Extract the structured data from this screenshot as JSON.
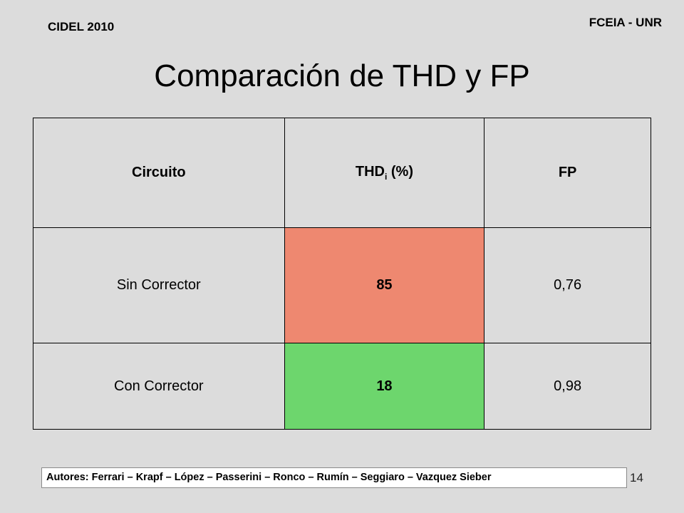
{
  "header": {
    "left_label": "CIDEL 2010",
    "right_label": "FCEIA - UNR"
  },
  "title": "Comparación de THD y FP",
  "table": {
    "headers": {
      "col1": "Circuito",
      "col2_main": "THD",
      "col2_sub": "i",
      "col2_tail": " (%)",
      "col3": "FP"
    },
    "rows": [
      {
        "circuito": "Sin Corrector",
        "thd": "85",
        "fp": "0,76",
        "thd_color": "#ee8870"
      },
      {
        "circuito": "Con Corrector",
        "thd": "18",
        "fp": "0,98",
        "thd_color": "#6dd66d"
      }
    ]
  },
  "footer": {
    "authors": "Autores: Ferrari – Krapf – López – Passerini – Ronco – Rumín – Seggiaro – Vazquez Sieber",
    "page_number": "14"
  }
}
